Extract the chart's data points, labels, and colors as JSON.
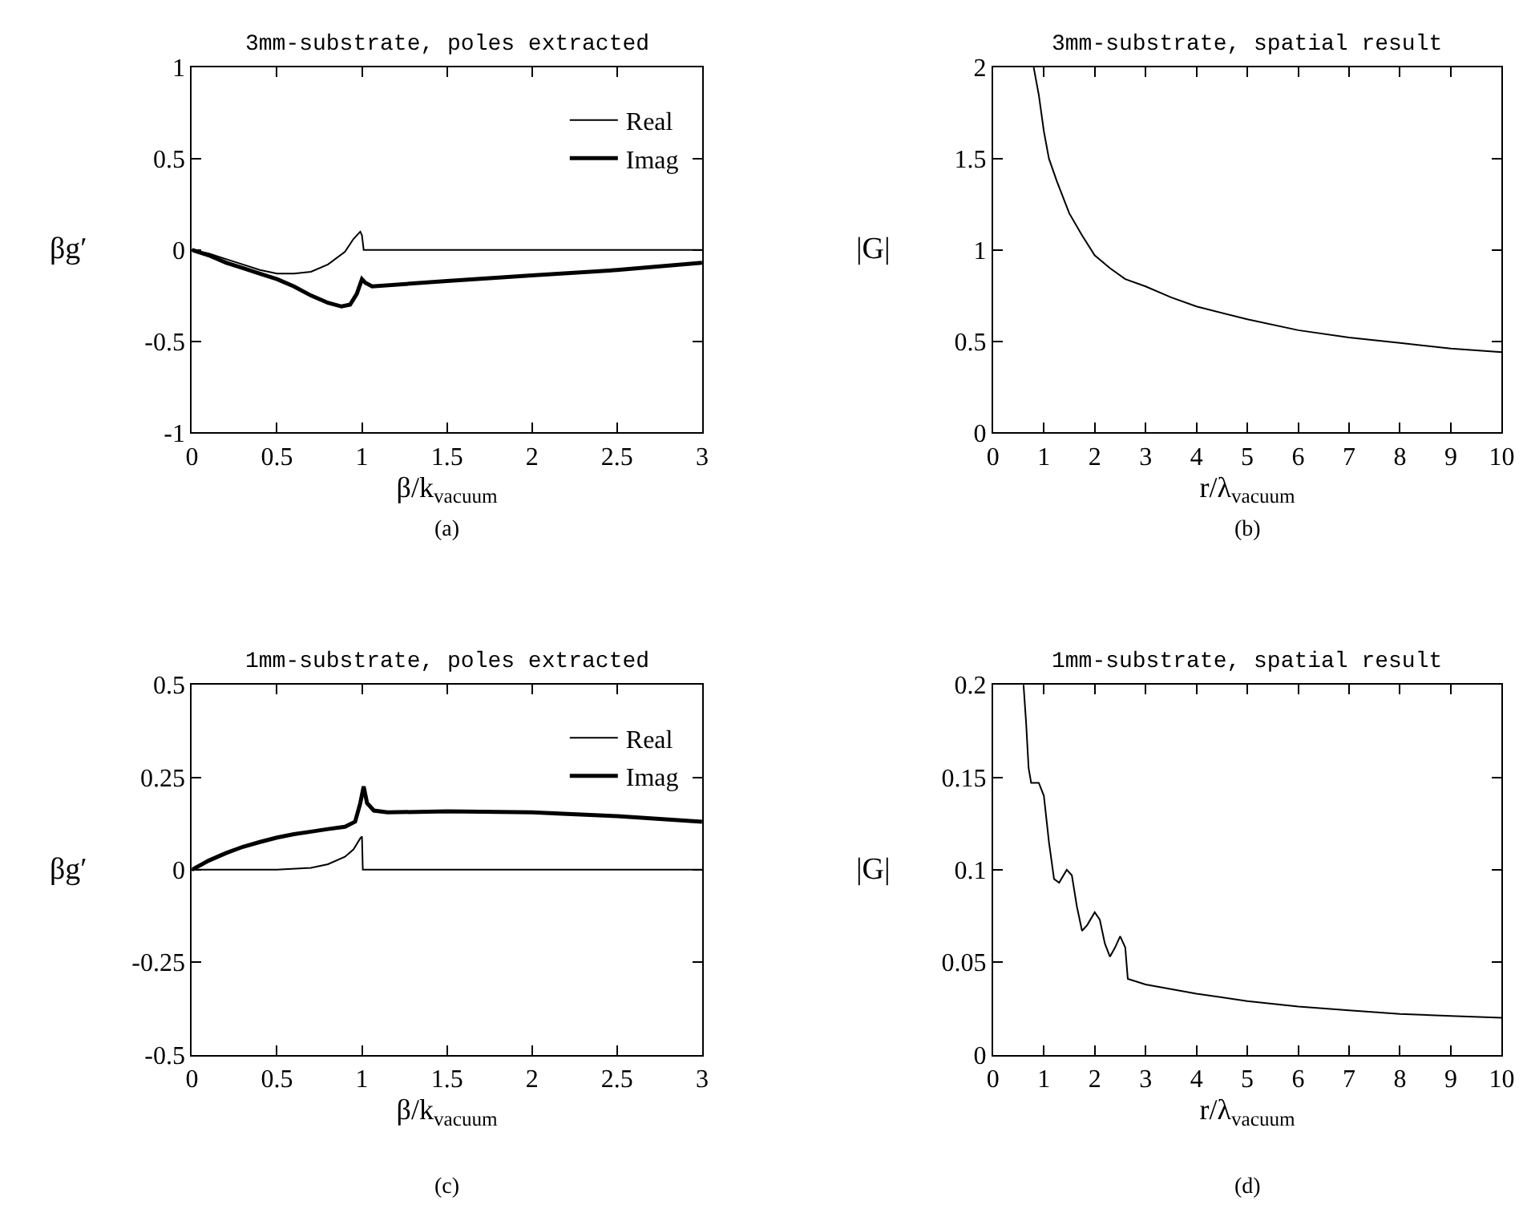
{
  "chart_data": [
    {
      "type": "line",
      "title": "3mm-substrate, poles extracted",
      "xlabel": "β/k$_{vacuum}$",
      "ylabel": "βg′",
      "annotations": [
        "(a)"
      ],
      "xlim": [
        0,
        3
      ],
      "xticks": [
        0,
        0.5,
        1,
        1.5,
        2,
        2.5,
        3
      ],
      "ylim": [
        -1,
        1
      ],
      "yticks": [
        -1,
        -0.5,
        0,
        0.5,
        1
      ],
      "legend": "top right",
      "line_style": "solid",
      "series": [
        {
          "name": "Real",
          "color": "#000000",
          "x": [
            0,
            0.1,
            0.2,
            0.3,
            0.4,
            0.5,
            0.6,
            0.7,
            0.8,
            0.9,
            0.95,
            0.99,
            1.0,
            1.01,
            1.5,
            2,
            2.5,
            3
          ],
          "values": [
            0,
            -0.02,
            -0.05,
            -0.08,
            -0.11,
            -0.13,
            -0.13,
            -0.12,
            -0.08,
            -0.01,
            0.06,
            0.1,
            0.08,
            0,
            0,
            0,
            0,
            0
          ]
        },
        {
          "name": "Imag",
          "color": "#000000",
          "x": [
            0,
            0.1,
            0.2,
            0.3,
            0.4,
            0.5,
            0.6,
            0.7,
            0.8,
            0.88,
            0.93,
            0.97,
            1.0,
            1.02,
            1.06,
            1.5,
            2,
            2.5,
            3
          ],
          "values": [
            0,
            -0.03,
            -0.07,
            -0.1,
            -0.13,
            -0.16,
            -0.2,
            -0.25,
            -0.29,
            -0.31,
            -0.3,
            -0.24,
            -0.16,
            -0.18,
            -0.2,
            -0.17,
            -0.14,
            -0.11,
            -0.07
          ]
        }
      ]
    },
    {
      "type": "line",
      "title": "3mm-substrate, spatial result",
      "xlabel": "r/λ$_{vacuum}$",
      "ylabel": "|G|",
      "annotations": [
        "(b)"
      ],
      "xlim": [
        0,
        10
      ],
      "xticks": [
        0,
        1,
        2,
        3,
        4,
        5,
        6,
        7,
        8,
        9,
        10
      ],
      "ylim": [
        0,
        2
      ],
      "yticks": [
        0,
        0.5,
        1,
        1.5,
        2
      ],
      "line_style": "solid",
      "series": [
        {
          "color": "#000000",
          "x": [
            0.8,
            0.9,
            1.0,
            1.1,
            1.25,
            1.5,
            1.75,
            2,
            2.3,
            2.6,
            3,
            3.5,
            4,
            5,
            6,
            7,
            8,
            9,
            10
          ],
          "values": [
            2,
            1.85,
            1.65,
            1.5,
            1.38,
            1.2,
            1.08,
            0.97,
            0.9,
            0.84,
            0.8,
            0.74,
            0.69,
            0.62,
            0.56,
            0.52,
            0.49,
            0.46,
            0.44
          ]
        }
      ]
    },
    {
      "type": "line",
      "title": "1mm-substrate, poles extracted",
      "xlabel": "β/k$_{vacuum}$",
      "ylabel": "βg′",
      "annotations": [
        "(c)"
      ],
      "xlim": [
        0,
        3
      ],
      "xticks": [
        0,
        0.5,
        1,
        1.5,
        2,
        2.5,
        3
      ],
      "ylim": [
        -0.5,
        0.5
      ],
      "yticks": [
        -0.5,
        -0.25,
        0,
        0.25,
        0.5
      ],
      "legend": "top right",
      "line_style": "solid",
      "series": [
        {
          "name": "Real",
          "color": "#000000",
          "x": [
            0,
            0.5,
            0.7,
            0.8,
            0.9,
            0.95,
            0.99,
            1.0,
            1.005,
            1.5,
            2,
            2.5,
            3
          ],
          "values": [
            0,
            0,
            0.005,
            0.015,
            0.035,
            0.055,
            0.085,
            0.09,
            0,
            0,
            0,
            0,
            0
          ]
        },
        {
          "name": "Imag",
          "color": "#000000",
          "x": [
            0,
            0.1,
            0.2,
            0.3,
            0.4,
            0.5,
            0.6,
            0.7,
            0.8,
            0.9,
            0.96,
            0.99,
            1.01,
            1.03,
            1.07,
            1.15,
            1.5,
            2,
            2.5,
            3
          ],
          "values": [
            0,
            0.025,
            0.045,
            0.062,
            0.075,
            0.087,
            0.096,
            0.103,
            0.11,
            0.116,
            0.13,
            0.18,
            0.225,
            0.18,
            0.16,
            0.155,
            0.158,
            0.155,
            0.145,
            0.13
          ]
        }
      ]
    },
    {
      "type": "line",
      "title": "1mm-substrate, spatial result",
      "xlabel": "r/λ$_{vacuum}$",
      "ylabel": "|G|",
      "annotations": [
        "(d)"
      ],
      "xlim": [
        0,
        10
      ],
      "xticks": [
        0,
        1,
        2,
        3,
        4,
        5,
        6,
        7,
        8,
        9,
        10
      ],
      "ylim": [
        0,
        0.2
      ],
      "yticks": [
        0,
        0.05,
        0.1,
        0.15,
        0.2
      ],
      "line_style": "solid",
      "series": [
        {
          "color": "#000000",
          "x": [
            0.6,
            0.65,
            0.7,
            0.75,
            0.9,
            1.0,
            1.1,
            1.2,
            1.3,
            1.45,
            1.55,
            1.65,
            1.75,
            1.85,
            2.0,
            2.1,
            2.2,
            2.3,
            2.4,
            2.5,
            2.6,
            2.65,
            3,
            4,
            5,
            6,
            7,
            8,
            9,
            10
          ],
          "values": [
            0.2,
            0.18,
            0.155,
            0.147,
            0.147,
            0.14,
            0.115,
            0.095,
            0.093,
            0.1,
            0.097,
            0.08,
            0.067,
            0.07,
            0.077,
            0.073,
            0.06,
            0.053,
            0.058,
            0.064,
            0.058,
            0.041,
            0.038,
            0.033,
            0.029,
            0.026,
            0.024,
            0.022,
            0.021,
            0.02
          ]
        }
      ]
    }
  ]
}
